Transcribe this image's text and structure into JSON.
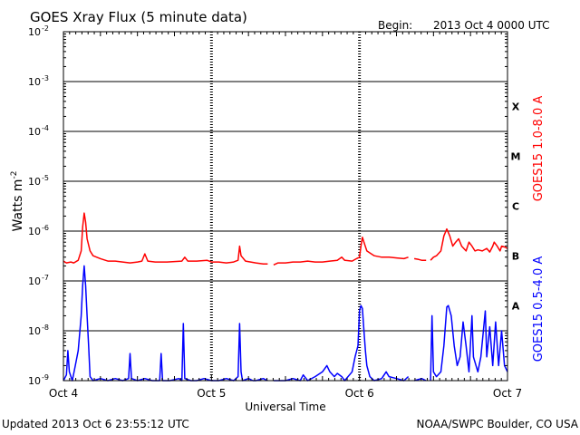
{
  "header": {
    "title": "GOES Xray Flux (5 minute data)",
    "begin_label": "Begin:",
    "begin_value": "2013 Oct 4 0000 UTC"
  },
  "footer": {
    "updated": "Updated 2013 Oct  6 23:55:12 UTC",
    "credit": "NOAA/SWPC Boulder, CO USA"
  },
  "chart_data": {
    "type": "line",
    "title": "GOES Xray Flux (5 minute data)",
    "xlabel": "Universal Time",
    "ylabel": "Watts m",
    "ylabel_exponent": "-2",
    "yscale": "log",
    "xlim": [
      0,
      3
    ],
    "ylim": [
      1e-09,
      0.01
    ],
    "x_unit": "days since Oct 4 0000 UTC",
    "y_ticks": [
      {
        "value": 1e-09,
        "label": "10",
        "exp": "-9"
      },
      {
        "value": 1e-08,
        "label": "10",
        "exp": "-8"
      },
      {
        "value": 1e-07,
        "label": "10",
        "exp": "-7"
      },
      {
        "value": 1e-06,
        "label": "10",
        "exp": "-6"
      },
      {
        "value": 1e-05,
        "label": "10",
        "exp": "-5"
      },
      {
        "value": 0.0001,
        "label": "10",
        "exp": "-4"
      },
      {
        "value": 0.001,
        "label": "10",
        "exp": "-3"
      },
      {
        "value": 0.01,
        "label": "10",
        "exp": "-2"
      }
    ],
    "x_ticks": [
      {
        "value": 0,
        "label": "Oct 4"
      },
      {
        "value": 1,
        "label": "Oct 5"
      },
      {
        "value": 2,
        "label": "Oct 6"
      },
      {
        "value": 3,
        "label": "Oct 7"
      }
    ],
    "flare_classes": [
      {
        "label": "X",
        "value": 0.0001
      },
      {
        "label": "M",
        "value": 1e-05
      },
      {
        "label": "C",
        "value": 1e-06
      },
      {
        "label": "B",
        "value": 1e-07
      },
      {
        "label": "A",
        "value": 1e-08
      }
    ],
    "grid": true,
    "series": [
      {
        "name": "GOES15 1.0-8.0 A",
        "color": "#ff0000",
        "points": [
          [
            0.0,
            2.5e-07
          ],
          [
            0.02,
            2.3e-07
          ],
          [
            0.05,
            2.4e-07
          ],
          [
            0.07,
            2.3e-07
          ],
          [
            0.1,
            2.6e-07
          ],
          [
            0.12,
            4e-07
          ],
          [
            0.13,
            1.2e-06
          ],
          [
            0.14,
            2.3e-06
          ],
          [
            0.15,
            1.5e-06
          ],
          [
            0.16,
            7e-07
          ],
          [
            0.18,
            4e-07
          ],
          [
            0.2,
            3.2e-07
          ],
          [
            0.25,
            2.8e-07
          ],
          [
            0.3,
            2.5e-07
          ],
          [
            0.35,
            2.5e-07
          ],
          [
            0.4,
            2.4e-07
          ],
          [
            0.45,
            2.3e-07
          ],
          [
            0.5,
            2.4e-07
          ],
          [
            0.53,
            2.5e-07
          ],
          [
            0.55,
            3.5e-07
          ],
          [
            0.57,
            2.5e-07
          ],
          [
            0.62,
            2.4e-07
          ],
          [
            0.7,
            2.4e-07
          ],
          [
            0.8,
            2.5e-07
          ],
          [
            0.82,
            3e-07
          ],
          [
            0.84,
            2.5e-07
          ],
          [
            0.9,
            2.5e-07
          ],
          [
            0.97,
            2.6e-07
          ],
          [
            1.0,
            2.4e-07
          ],
          [
            1.05,
            2.4e-07
          ],
          [
            1.1,
            2.3e-07
          ],
          [
            1.15,
            2.4e-07
          ],
          [
            1.18,
            2.6e-07
          ],
          [
            1.19,
            5e-07
          ],
          [
            1.2,
            3.2e-07
          ],
          [
            1.23,
            2.5e-07
          ],
          [
            1.3,
            2.3e-07
          ],
          [
            1.35,
            2.2e-07
          ],
          [
            1.38,
            2.2e-07
          ],
          [
            1.4,
            null
          ],
          [
            1.42,
            2.1e-07
          ],
          [
            1.45,
            2.3e-07
          ],
          [
            1.5,
            2.3e-07
          ],
          [
            1.55,
            2.4e-07
          ],
          [
            1.6,
            2.4e-07
          ],
          [
            1.65,
            2.5e-07
          ],
          [
            1.7,
            2.4e-07
          ],
          [
            1.75,
            2.4e-07
          ],
          [
            1.8,
            2.5e-07
          ],
          [
            1.85,
            2.6e-07
          ],
          [
            1.88,
            3e-07
          ],
          [
            1.9,
            2.6e-07
          ],
          [
            1.95,
            2.5e-07
          ],
          [
            1.98,
            2.8e-07
          ],
          [
            2.0,
            3e-07
          ],
          [
            2.01,
            5e-07
          ],
          [
            2.02,
            7.5e-07
          ],
          [
            2.03,
            6e-07
          ],
          [
            2.05,
            4e-07
          ],
          [
            2.08,
            3.5e-07
          ],
          [
            2.1,
            3.2e-07
          ],
          [
            2.15,
            3e-07
          ],
          [
            2.2,
            3e-07
          ],
          [
            2.25,
            2.9e-07
          ],
          [
            2.3,
            2.8e-07
          ],
          [
            2.33,
            3e-07
          ],
          [
            2.35,
            null
          ],
          [
            2.37,
            2.8e-07
          ],
          [
            2.4,
            2.7e-07
          ],
          [
            2.42,
            2.6e-07
          ],
          [
            2.45,
            2.6e-07
          ],
          [
            2.46,
            null
          ],
          [
            2.48,
            2.6e-07
          ],
          [
            2.5,
            3e-07
          ],
          [
            2.52,
            3.2e-07
          ],
          [
            2.55,
            4e-07
          ],
          [
            2.57,
            8e-07
          ],
          [
            2.59,
            1.1e-06
          ],
          [
            2.61,
            8e-07
          ],
          [
            2.63,
            5e-07
          ],
          [
            2.65,
            6e-07
          ],
          [
            2.67,
            7e-07
          ],
          [
            2.69,
            5e-07
          ],
          [
            2.72,
            4e-07
          ],
          [
            2.74,
            6e-07
          ],
          [
            2.76,
            5e-07
          ],
          [
            2.78,
            4e-07
          ],
          [
            2.8,
            4.2e-07
          ],
          [
            2.83,
            4e-07
          ],
          [
            2.86,
            4.5e-07
          ],
          [
            2.88,
            3.8e-07
          ],
          [
            2.9,
            5e-07
          ],
          [
            2.91,
            6e-07
          ],
          [
            2.93,
            5e-07
          ],
          [
            2.95,
            4e-07
          ],
          [
            2.96,
            5e-07
          ],
          [
            2.98,
            4.8e-07
          ],
          [
            3.0,
            4.5e-07
          ]
        ]
      },
      {
        "name": "GOES15 0.5-4.0 A",
        "color": "#0000ff",
        "points": [
          [
            0.0,
            1e-09
          ],
          [
            0.02,
            1.3e-09
          ],
          [
            0.03,
            4e-09
          ],
          [
            0.04,
            1.5e-09
          ],
          [
            0.06,
            1e-09
          ],
          [
            0.08,
            2e-09
          ],
          [
            0.1,
            4e-09
          ],
          [
            0.12,
            2e-08
          ],
          [
            0.13,
            8e-08
          ],
          [
            0.14,
            2e-07
          ],
          [
            0.15,
            8e-08
          ],
          [
            0.16,
            2e-08
          ],
          [
            0.17,
            5e-09
          ],
          [
            0.18,
            1.2e-09
          ],
          [
            0.2,
            1e-09
          ],
          [
            0.25,
            1.1e-09
          ],
          [
            0.3,
            1e-09
          ],
          [
            0.35,
            1.1e-09
          ],
          [
            0.4,
            1e-09
          ],
          [
            0.44,
            1.1e-09
          ],
          [
            0.45,
            3.5e-09
          ],
          [
            0.46,
            1.1e-09
          ],
          [
            0.5,
            1e-09
          ],
          [
            0.55,
            1.1e-09
          ],
          [
            0.6,
            1e-09
          ],
          [
            0.65,
            1e-09
          ],
          [
            0.66,
            3.5e-09
          ],
          [
            0.67,
            1e-09
          ],
          [
            0.72,
            1e-09
          ],
          [
            0.78,
            1.1e-09
          ],
          [
            0.8,
            1e-09
          ],
          [
            0.81,
            1.4e-08
          ],
          [
            0.82,
            1.1e-09
          ],
          [
            0.86,
            1e-09
          ],
          [
            0.9,
            1e-09
          ],
          [
            0.95,
            1.1e-09
          ],
          [
            1.0,
            1e-09
          ],
          [
            1.05,
            1e-09
          ],
          [
            1.1,
            1.1e-09
          ],
          [
            1.15,
            1e-09
          ],
          [
            1.18,
            1.2e-09
          ],
          [
            1.19,
            1.4e-08
          ],
          [
            1.2,
            1.5e-09
          ],
          [
            1.21,
            1e-09
          ],
          [
            1.25,
            1.1e-09
          ],
          [
            1.28,
            1e-09
          ],
          [
            1.3,
            1e-09
          ],
          [
            1.35,
            1.1e-09
          ],
          [
            1.38,
            1e-09
          ],
          [
            1.4,
            null
          ],
          [
            1.42,
            1e-09
          ],
          [
            1.5,
            1e-09
          ],
          [
            1.55,
            1.1e-09
          ],
          [
            1.6,
            1e-09
          ],
          [
            1.62,
            1.3e-09
          ],
          [
            1.65,
            1e-09
          ],
          [
            1.7,
            1.2e-09
          ],
          [
            1.75,
            1.5e-09
          ],
          [
            1.78,
            2e-09
          ],
          [
            1.8,
            1.5e-09
          ],
          [
            1.83,
            1.2e-09
          ],
          [
            1.85,
            1.4e-09
          ],
          [
            1.88,
            1.2e-09
          ],
          [
            1.9,
            1e-09
          ],
          [
            1.95,
            1.5e-09
          ],
          [
            1.97,
            3e-09
          ],
          [
            1.99,
            5e-09
          ],
          [
            2.0,
            2.5e-08
          ],
          [
            2.01,
            3.2e-08
          ],
          [
            2.02,
            2.8e-08
          ],
          [
            2.03,
            1e-08
          ],
          [
            2.04,
            4e-09
          ],
          [
            2.05,
            2e-09
          ],
          [
            2.07,
            1.2e-09
          ],
          [
            2.1,
            1e-09
          ],
          [
            2.15,
            1.1e-09
          ],
          [
            2.18,
            1.5e-09
          ],
          [
            2.2,
            1.2e-09
          ],
          [
            2.25,
            1.1e-09
          ],
          [
            2.3,
            1e-09
          ],
          [
            2.33,
            1.2e-09
          ],
          [
            2.35,
            null
          ],
          [
            2.37,
            1e-09
          ],
          [
            2.42,
            1.1e-09
          ],
          [
            2.45,
            1e-09
          ],
          [
            2.46,
            null
          ],
          [
            2.48,
            1e-09
          ],
          [
            2.49,
            2e-08
          ],
          [
            2.5,
            1.5e-09
          ],
          [
            2.52,
            1.2e-09
          ],
          [
            2.55,
            1.5e-09
          ],
          [
            2.57,
            5e-09
          ],
          [
            2.59,
            3e-08
          ],
          [
            2.6,
            3.2e-08
          ],
          [
            2.62,
            2e-08
          ],
          [
            2.64,
            5e-09
          ],
          [
            2.66,
            2e-09
          ],
          [
            2.68,
            3e-09
          ],
          [
            2.7,
            1.5e-08
          ],
          [
            2.72,
            5e-09
          ],
          [
            2.74,
            1.5e-09
          ],
          [
            2.76,
            2e-08
          ],
          [
            2.77,
            3e-09
          ],
          [
            2.8,
            1.5e-09
          ],
          [
            2.82,
            3e-09
          ],
          [
            2.85,
            2.5e-08
          ],
          [
            2.86,
            3e-09
          ],
          [
            2.88,
            1.2e-08
          ],
          [
            2.9,
            2e-09
          ],
          [
            2.92,
            1.5e-08
          ],
          [
            2.94,
            2e-09
          ],
          [
            2.96,
            1e-08
          ],
          [
            2.98,
            2e-09
          ],
          [
            3.0,
            1.5e-09
          ]
        ]
      }
    ]
  }
}
